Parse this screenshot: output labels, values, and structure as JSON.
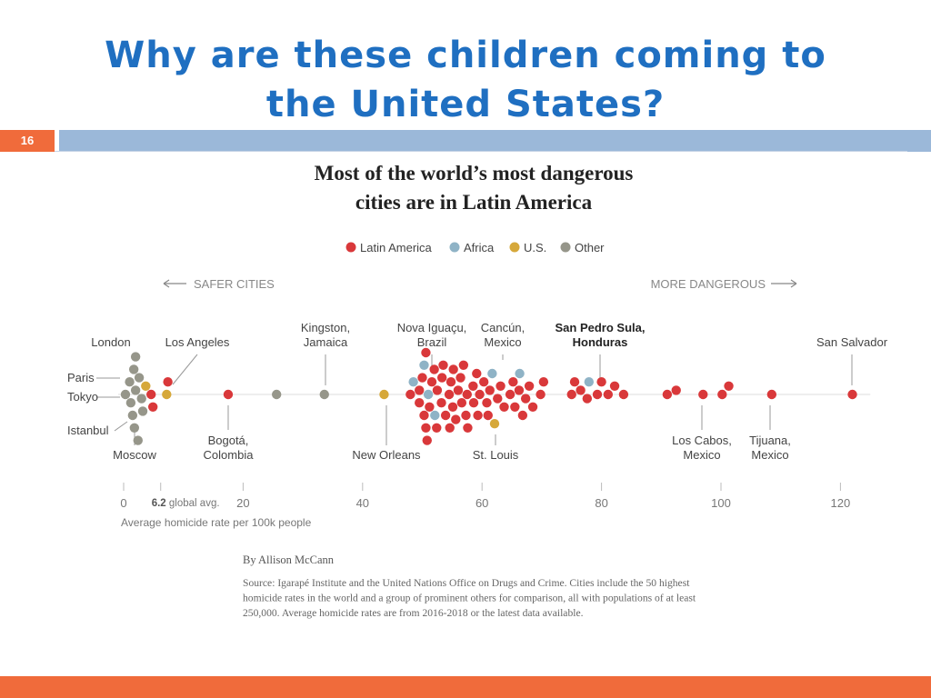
{
  "slide": {
    "title_line1": "Why are these children coming to",
    "title_line2": "the United States?",
    "number": "16"
  },
  "colors": {
    "title": "#1f6fc1",
    "accent_bar": "#9bb8d9",
    "slide_number_bg": "#f06b3b",
    "latin_america": "#d9383a",
    "africa": "#8fb3c6",
    "us": "#d6a83a",
    "other": "#96968a"
  },
  "chart_data": {
    "type": "scatter",
    "title_line1": "Most of the world’s most dangerous",
    "title_line2": "cities are in Latin America",
    "legend": [
      {
        "key": "latin_america",
        "label": "Latin America",
        "color": "#d9383a"
      },
      {
        "key": "africa",
        "label": "Africa",
        "color": "#8fb3c6"
      },
      {
        "key": "us",
        "label": "U.S.",
        "color": "#d6a83a"
      },
      {
        "key": "other",
        "label": "Other",
        "color": "#96968a"
      }
    ],
    "legend_position": "top-center",
    "direction_left": "SAFER CITIES",
    "direction_right": "MORE DANGEROUS",
    "xlabel": "Average homicide rate per 100k people",
    "xlim": [
      0,
      125
    ],
    "xticks": [
      0,
      20,
      40,
      60,
      80,
      100,
      120
    ],
    "global_avg": {
      "value": 6.2,
      "label_value": "6.2",
      "label_text": "global avg."
    },
    "grid": false,
    "annotated_cities": [
      {
        "name": [
          "London"
        ],
        "region": "other",
        "x": 1.0
      },
      {
        "name": [
          "Paris"
        ],
        "region": "other",
        "x": 1.2
      },
      {
        "name": [
          "Tokyo"
        ],
        "region": "other",
        "x": 0.3
      },
      {
        "name": [
          "Istanbul"
        ],
        "region": "other",
        "x": 1.7
      },
      {
        "name": [
          "Moscow"
        ],
        "region": "other",
        "x": 2.0
      },
      {
        "name": [
          "Los Angeles"
        ],
        "region": "us",
        "x": 7.2
      },
      {
        "name": [
          "Bogotá,",
          "Colombia"
        ],
        "region": "latin_america",
        "x": 17.5
      },
      {
        "name": [
          "Kingston,",
          "Jamaica"
        ],
        "region": "other",
        "x": 33.6
      },
      {
        "name": [
          "New Orleans"
        ],
        "region": "us",
        "x": 43.6
      },
      {
        "name": [
          "Nova Iguaçu,",
          "Brazil"
        ],
        "region": "latin_america",
        "x": 51.2
      },
      {
        "name": [
          "Cancún,",
          "Mexico"
        ],
        "region": "latin_america",
        "x": 55.1
      },
      {
        "name": [
          "St. Louis"
        ],
        "region": "us",
        "x": 62.1
      },
      {
        "name": [
          "San Pedro Sula,",
          "Honduras"
        ],
        "region": "latin_america",
        "x": 80.0
      },
      {
        "name": [
          "Los Cabos,",
          "Mexico"
        ],
        "region": "latin_america",
        "x": 97.0
      },
      {
        "name": [
          "Tijuana,",
          "Mexico"
        ],
        "region": "latin_america",
        "x": 108.5
      },
      {
        "name": [
          "San Salvador"
        ],
        "region": "latin_america",
        "x": 122.0
      }
    ],
    "points": [
      {
        "region": "other",
        "x": 1.0
      },
      {
        "region": "other",
        "x": 2.0
      },
      {
        "region": "other",
        "x": 1.2
      },
      {
        "region": "other",
        "x": 2.4
      },
      {
        "region": "other",
        "x": 1.5
      },
      {
        "region": "other",
        "x": 0.3
      },
      {
        "region": "other",
        "x": 2.6
      },
      {
        "region": "other",
        "x": 1.7
      },
      {
        "region": "other",
        "x": 3.0
      },
      {
        "region": "other",
        "x": 1.8
      },
      {
        "region": "other",
        "x": 3.2
      },
      {
        "region": "other",
        "x": 2.0
      },
      {
        "region": "us",
        "x": 3.7
      },
      {
        "region": "latin_america",
        "x": 4.9
      },
      {
        "region": "latin_america",
        "x": 4.6
      },
      {
        "region": "us",
        "x": 7.2
      },
      {
        "region": "latin_america",
        "x": 7.4
      },
      {
        "region": "latin_america",
        "x": 17.5
      },
      {
        "region": "other",
        "x": 25.6
      },
      {
        "region": "other",
        "x": 33.6
      },
      {
        "region": "us",
        "x": 43.6
      },
      {
        "region": "latin_america",
        "x": 48.0
      },
      {
        "region": "latin_america",
        "x": 49.5
      },
      {
        "region": "latin_america",
        "x": 50.0
      },
      {
        "region": "latin_america",
        "x": 49.5
      },
      {
        "region": "africa",
        "x": 48.5
      },
      {
        "region": "latin_america",
        "x": 50.8
      },
      {
        "region": "latin_america",
        "x": 50.6
      },
      {
        "region": "latin_america",
        "x": 50.3
      },
      {
        "region": "latin_america",
        "x": 50.6
      },
      {
        "region": "latin_america",
        "x": 51.2
      },
      {
        "region": "africa",
        "x": 50.3
      },
      {
        "region": "latin_america",
        "x": 51.6
      },
      {
        "region": "latin_america",
        "x": 52.0
      },
      {
        "region": "africa",
        "x": 52.1
      },
      {
        "region": "latin_america",
        "x": 52.5
      },
      {
        "region": "latin_america",
        "x": 52.4
      },
      {
        "region": "latin_america",
        "x": 53.3
      },
      {
        "region": "latin_america",
        "x": 53.2
      },
      {
        "region": "africa",
        "x": 51.0
      },
      {
        "region": "latin_america",
        "x": 53.9
      },
      {
        "region": "latin_america",
        "x": 53.5
      },
      {
        "region": "latin_america",
        "x": 54.5
      },
      {
        "region": "latin_america",
        "x": 54.6
      },
      {
        "region": "latin_america",
        "x": 54.8
      },
      {
        "region": "latin_america",
        "x": 55.1
      },
      {
        "region": "latin_america",
        "x": 55.2
      },
      {
        "region": "latin_america",
        "x": 55.6
      },
      {
        "region": "latin_america",
        "x": 56.0
      },
      {
        "region": "latin_america",
        "x": 56.4
      },
      {
        "region": "latin_america",
        "x": 56.6
      },
      {
        "region": "latin_america",
        "x": 56.9
      },
      {
        "region": "latin_america",
        "x": 57.3
      },
      {
        "region": "latin_america",
        "x": 57.5
      },
      {
        "region": "latin_america",
        "x": 57.6
      },
      {
        "region": "latin_america",
        "x": 58.5
      },
      {
        "region": "latin_america",
        "x": 58.6
      },
      {
        "region": "latin_america",
        "x": 59.1
      },
      {
        "region": "latin_america",
        "x": 59.3
      },
      {
        "region": "latin_america",
        "x": 59.6
      },
      {
        "region": "latin_america",
        "x": 60.3
      },
      {
        "region": "latin_america",
        "x": 60.8
      },
      {
        "region": "latin_america",
        "x": 61.0
      },
      {
        "region": "latin_america",
        "x": 61.3
      },
      {
        "region": "africa",
        "x": 61.7
      },
      {
        "region": "us",
        "x": 62.1
      },
      {
        "region": "latin_america",
        "x": 62.6
      },
      {
        "region": "latin_america",
        "x": 63.1
      },
      {
        "region": "latin_america",
        "x": 63.7
      },
      {
        "region": "latin_america",
        "x": 64.7
      },
      {
        "region": "latin_america",
        "x": 65.2
      },
      {
        "region": "latin_america",
        "x": 65.5
      },
      {
        "region": "latin_america",
        "x": 66.2
      },
      {
        "region": "latin_america",
        "x": 66.8
      },
      {
        "region": "latin_america",
        "x": 67.3
      },
      {
        "region": "africa",
        "x": 66.3
      },
      {
        "region": "latin_america",
        "x": 67.9
      },
      {
        "region": "latin_america",
        "x": 68.5
      },
      {
        "region": "latin_america",
        "x": 69.8
      },
      {
        "region": "latin_america",
        "x": 70.3
      },
      {
        "region": "latin_america",
        "x": 75.0
      },
      {
        "region": "latin_america",
        "x": 75.5
      },
      {
        "region": "latin_america",
        "x": 76.5
      },
      {
        "region": "latin_america",
        "x": 77.6
      },
      {
        "region": "africa",
        "x": 77.9
      },
      {
        "region": "latin_america",
        "x": 79.3
      },
      {
        "region": "latin_america",
        "x": 80.0
      },
      {
        "region": "latin_america",
        "x": 81.1
      },
      {
        "region": "latin_america",
        "x": 82.2
      },
      {
        "region": "latin_america",
        "x": 83.7
      },
      {
        "region": "latin_america",
        "x": 91.0
      },
      {
        "region": "latin_america",
        "x": 92.5
      },
      {
        "region": "latin_america",
        "x": 97.0
      },
      {
        "region": "latin_america",
        "x": 100.2
      },
      {
        "region": "latin_america",
        "x": 101.3
      },
      {
        "region": "latin_america",
        "x": 108.5
      },
      {
        "region": "latin_america",
        "x": 122.0
      }
    ],
    "credit": "By Allison McCann",
    "source_lines": [
      "Source: Igarapé Institute and the United Nations Office on Drugs and Crime. Cities include the 50 highest",
      "homicide rates in the world and a group of prominent others for comparison, all with populations of at least",
      "250,000. Average homicide rates are from 2016-2018 or the latest data available."
    ]
  }
}
